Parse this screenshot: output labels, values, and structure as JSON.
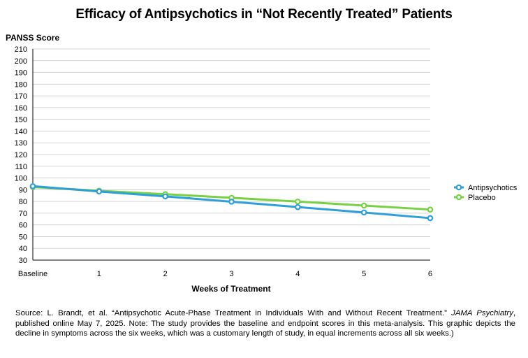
{
  "chart_data": {
    "type": "line",
    "title": "Efficacy of Antipsychotics in “Not Recently Treated” Patients",
    "ylabel": "PANSS Score",
    "xlabel": "Weeks of Treatment",
    "categories": [
      "Baseline",
      "1",
      "2",
      "3",
      "4",
      "5",
      "6"
    ],
    "ylim": [
      30,
      210
    ],
    "ytick_step": 10,
    "grid": "horizontal",
    "legend_position": "right",
    "series": [
      {
        "name": "Antipsychotics",
        "color": "#2f9fd8",
        "values": [
          93.0,
          88.5,
          84.3,
          79.8,
          75.2,
          70.6,
          65.8
        ]
      },
      {
        "name": "Placebo",
        "color": "#76d242",
        "values": [
          92.3,
          89.1,
          86.2,
          83.1,
          79.9,
          76.5,
          73.1
        ]
      }
    ]
  },
  "source_note": {
    "prefix": "Source:   L. Brandt, et al. “Antipsychotic Acute-Phase Treatment in Individuals With and Without Recent Treatment.” ",
    "journal": "JAMA Psychiatry",
    "suffix": ", published online May 7, 2025. Note: The study provides the baseline and endpoint scores in this meta-analysis. This graphic depicts the decline in symptoms across the six weeks, which was a customary length of study, in equal increments across all six weeks.)"
  }
}
